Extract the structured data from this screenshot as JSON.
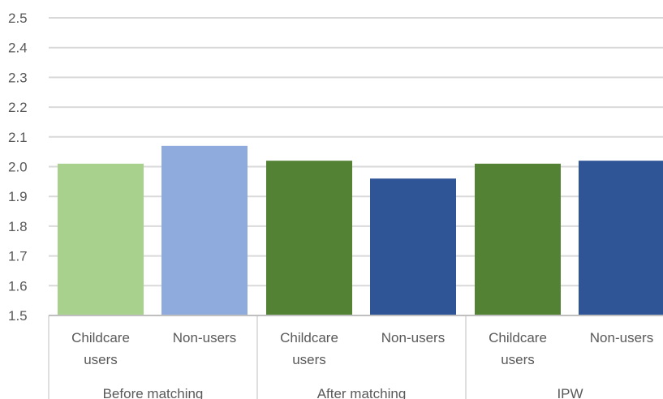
{
  "chart_data": {
    "type": "bar",
    "title": "",
    "xlabel": "",
    "ylabel": "",
    "ylim": [
      1.5,
      2.5
    ],
    "yticks": [
      "1.5",
      "1.6",
      "1.7",
      "1.8",
      "1.9",
      "2.0",
      "2.1",
      "2.2",
      "2.3",
      "2.4",
      "2.5"
    ],
    "grid": true,
    "groups": [
      {
        "label": "Before matching",
        "bars": [
          {
            "category": "Childcare users",
            "value": 2.01,
            "color": "#a9d18e"
          },
          {
            "category": "Non-users",
            "value": 2.07,
            "color": "#8faadc"
          }
        ]
      },
      {
        "label": "After matching",
        "bars": [
          {
            "category": "Childcare users",
            "value": 2.02,
            "color": "#548235"
          },
          {
            "category": "Non-users",
            "value": 1.96,
            "color": "#2f5597"
          }
        ]
      },
      {
        "label": "IPW",
        "bars": [
          {
            "category": "Childcare users",
            "value": 2.01,
            "color": "#548235"
          },
          {
            "category": "Non-users",
            "value": 2.02,
            "color": "#2f5597"
          }
        ]
      }
    ],
    "colors": {
      "grid": "#d9d9d9",
      "axis": "#bfbfbf",
      "text": "#595959"
    }
  }
}
